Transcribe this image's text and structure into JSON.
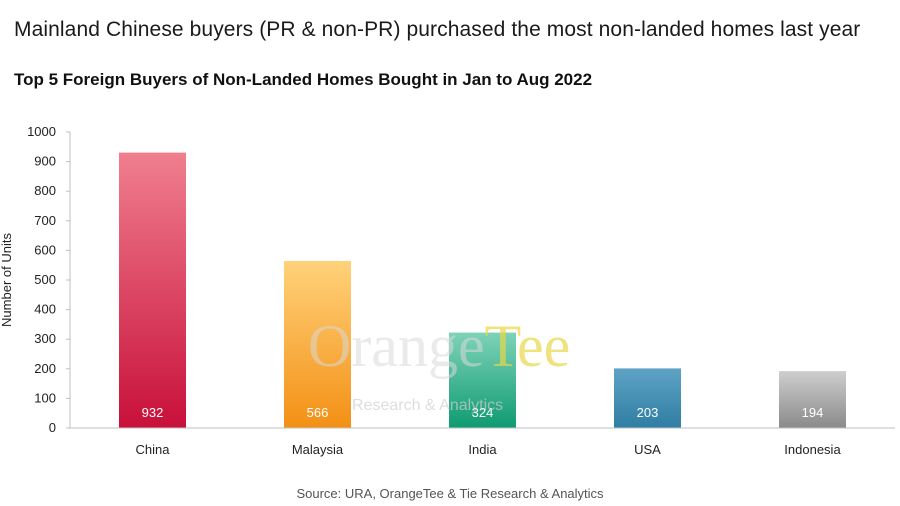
{
  "headline": "Mainland Chinese buyers (PR & non-PR) purchased the most non-landed homes last year",
  "source": "Source: URA, OrangeTee & Tie Research & Analytics",
  "watermark": {
    "brand_main": "Orange",
    "brand_accent": "Tee",
    "tagline": "Research & Analytics"
  },
  "chart_data": {
    "type": "bar",
    "title": "Top 5 Foreign Buyers of Non-Landed Homes Bought in Jan to Aug 2022",
    "ylabel": "Number of Units",
    "xlabel": "",
    "ylim": [
      0,
      1000
    ],
    "yticks": [
      0,
      100,
      200,
      300,
      400,
      500,
      600,
      700,
      800,
      900,
      1000
    ],
    "grid": false,
    "categories": [
      "China",
      "Malaysia",
      "India",
      "USA",
      "Indonesia"
    ],
    "values": [
      932,
      566,
      324,
      203,
      194
    ],
    "colors": [
      [
        "#f07f8e",
        "#c8103a"
      ],
      [
        "#ffd27a",
        "#f39015"
      ],
      [
        "#7fd3b8",
        "#0f9b72"
      ],
      [
        "#5ea3c6",
        "#2f7ea3"
      ],
      [
        "#cfcfcf",
        "#8a8a8a"
      ]
    ]
  }
}
